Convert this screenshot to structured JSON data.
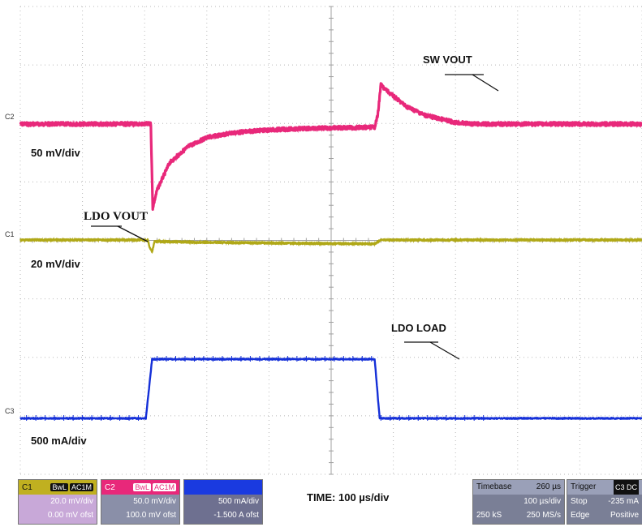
{
  "chart_data": {
    "type": "line",
    "title": "",
    "x_unit": "µs",
    "x_per_div": 100,
    "grid": true,
    "series": [
      {
        "channel": "C2",
        "name": "SW VOUT",
        "scale_label": "50 mV/div",
        "color": "#e8287a",
        "points": [
          [
            0,
            0
          ],
          [
            20,
            0
          ],
          [
            40,
            0
          ],
          [
            60,
            0
          ],
          [
            80,
            0
          ],
          [
            100,
            0
          ],
          [
            120,
            0
          ],
          [
            140,
            0
          ],
          [
            160,
            0
          ],
          [
            180,
            0
          ],
          [
            200,
            0
          ],
          [
            210,
            0
          ],
          [
            213,
            -2.8
          ],
          [
            220,
            -2.2
          ],
          [
            240,
            -1.3
          ],
          [
            270,
            -0.75
          ],
          [
            300,
            -0.45
          ],
          [
            340,
            -0.3
          ],
          [
            380,
            -0.22
          ],
          [
            420,
            -0.18
          ],
          [
            460,
            -0.15
          ],
          [
            500,
            -0.13
          ],
          [
            540,
            -0.12
          ],
          [
            570,
            -0.1
          ],
          [
            575,
            0.3
          ],
          [
            580,
            1.3
          ],
          [
            590,
            1.1
          ],
          [
            620,
            0.6
          ],
          [
            650,
            0.3
          ],
          [
            680,
            0.15
          ],
          [
            700,
            0.05
          ],
          [
            730,
            0.0
          ],
          [
            760,
            0.0
          ]
        ],
        "amplitude": 0.06
      },
      {
        "channel": "C1",
        "name": "LDO VOUT",
        "scale_label": "20 mV/div",
        "color": "#b0a818",
        "points": [
          [
            0,
            2.0
          ],
          [
            100,
            2.0
          ],
          [
            200,
            2.0
          ],
          [
            205,
            2.0
          ],
          [
            208,
            1.75
          ],
          [
            212,
            1.6
          ],
          [
            216,
            1.95
          ],
          [
            222,
            1.95
          ],
          [
            300,
            1.92
          ],
          [
            400,
            1.9
          ],
          [
            500,
            1.88
          ],
          [
            570,
            1.87
          ],
          [
            580,
            2.0
          ],
          [
            680,
            2.0
          ],
          [
            760,
            2.0
          ]
        ],
        "amplitude": 0.03
      },
      {
        "channel": "C3",
        "name": "LDO LOAD",
        "scale_label": "500 mA/div",
        "color": "#1530d8",
        "points": [
          [
            0,
            0
          ],
          [
            200,
            0
          ],
          [
            202,
            0
          ],
          [
            212,
            1.0
          ],
          [
            570,
            1.0
          ],
          [
            578,
            0
          ],
          [
            760,
            0
          ]
        ],
        "amplitude": 0.01
      }
    ],
    "annotations": [
      "SW VOUT",
      "LDO VOUT",
      "LDO LOAD"
    ]
  },
  "labels": {
    "sw_vout": "SW VOUT",
    "ldo_vout": "LDO VOUT",
    "ldo_load": "LDO LOAD",
    "c2_scale": "50 mV/div",
    "c1_scale": "20 mV/div",
    "c3_scale": "500 mA/div",
    "c2_tag": "C2",
    "c1_tag": "C1",
    "c3_tag": "C3",
    "time": "TIME: 100 µs/div"
  },
  "status_bar": {
    "c1": {
      "name": "C1",
      "tags": [
        "BwL",
        "AC1M"
      ],
      "vdiv": "20.0 mV/div",
      "offset": "0.00 mV ofst",
      "color": "#b0a818"
    },
    "c2": {
      "name": "C2",
      "tags": [
        "BwL",
        "AC1M"
      ],
      "vdiv": "50.0 mV/div",
      "offset": "100.0 mV ofst",
      "color": "#e8287a"
    },
    "c3": {
      "name": "",
      "tags": [],
      "vdiv": "500 mA/div",
      "offset": "-1.500 A ofst",
      "color": "#1530d8"
    },
    "timebase": {
      "title": "Timebase",
      "delay": "260 µs",
      "per_div": "100 µs/div",
      "samples": "250 kS",
      "rate": "250 MS/s"
    },
    "trigger": {
      "title": "Trigger",
      "source": "C3 DC",
      "mode": "Stop",
      "level": "-235 mA",
      "type": "Edge",
      "slope": "Positive"
    }
  }
}
